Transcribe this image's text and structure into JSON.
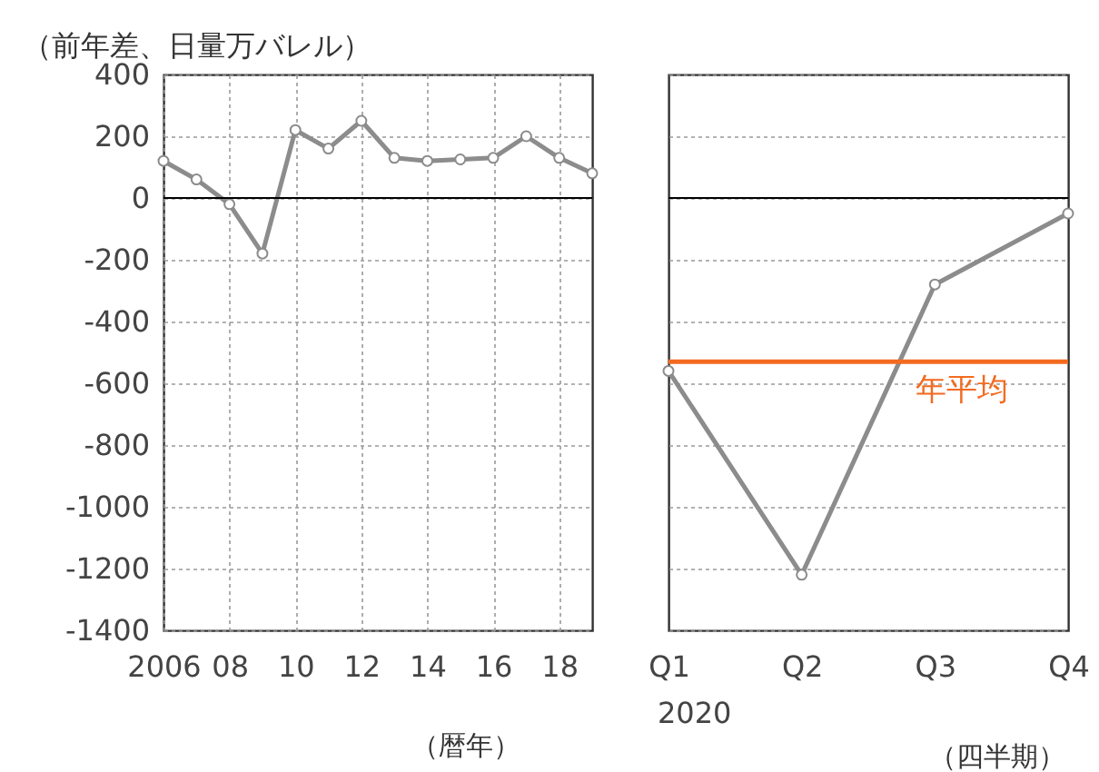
{
  "chart_data": [
    {
      "type": "line",
      "ylabel": "（前年差、日量万バレル）",
      "xlabel": "（暦年）",
      "x": [
        2006,
        2007,
        2008,
        2009,
        2010,
        2011,
        2012,
        2013,
        2014,
        2015,
        2016,
        2017,
        2018,
        2019
      ],
      "series": [
        {
          "color": "#8c8c8c",
          "values": [
            120,
            60,
            -20,
            -180,
            220,
            160,
            250,
            130,
            120,
            125,
            130,
            200,
            130,
            80
          ]
        }
      ],
      "xlim": [
        2006,
        2019
      ],
      "xticks": [
        2006,
        {
          "value": 2008,
          "label": "08"
        },
        {
          "value": 2010,
          "label": "10"
        },
        {
          "value": 2012,
          "label": "12"
        },
        {
          "value": 2014,
          "label": "14"
        },
        {
          "value": 2016,
          "label": "16"
        },
        {
          "value": 2018,
          "label": "18"
        }
      ],
      "ylim": [
        -1400,
        400
      ],
      "yticks": [
        -1400,
        -1200,
        -1000,
        -800,
        -600,
        -400,
        -200,
        0,
        200,
        400
      ],
      "ref_lines": [
        {
          "axis": "y",
          "value": 0,
          "color": "#000000"
        }
      ],
      "grid": true,
      "marker": "circle",
      "line_style": "solid"
    },
    {
      "type": "line",
      "xlabel": "（四半期）",
      "categories": [
        "Q1",
        "Q2",
        "Q3",
        "Q4"
      ],
      "series": [
        {
          "color": "#8c8c8c",
          "values": [
            -560,
            -1220,
            -280,
            -50
          ]
        }
      ],
      "ylim": [
        -1400,
        400
      ],
      "yticks": [
        -1400,
        -1200,
        -1000,
        -800,
        -600,
        -400,
        -200,
        0,
        200,
        400
      ],
      "ref_lines": [
        {
          "axis": "y",
          "value": 0,
          "color": "#000000"
        },
        {
          "axis": "y",
          "value": -530,
          "label": "年平均",
          "color": "#f26b21"
        }
      ],
      "annotations": [
        "2020"
      ],
      "grid": "y",
      "tick_labels": "x",
      "marker": "circle",
      "line_style": "solid"
    }
  ]
}
